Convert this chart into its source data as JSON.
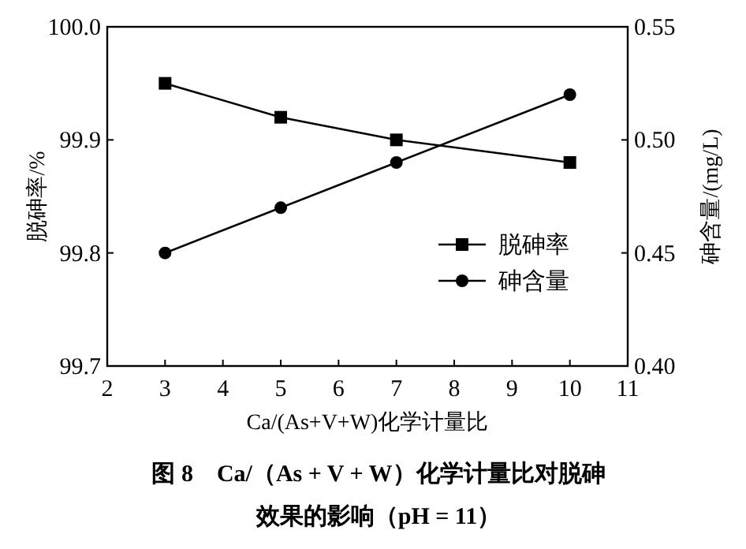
{
  "chart_data": {
    "type": "line",
    "title": "图 8　Ca/（As + V + W）化学计量比对脱砷效果的影响（pH = 11）",
    "xlabel": "Ca/(As+V+W)化学计量比",
    "ylabel": "脱砷率/%",
    "y2label": "砷含量/(mg/L)",
    "x": [
      3,
      5,
      7,
      10
    ],
    "series": [
      {
        "name": "脱砷率",
        "color": "#000000",
        "marker": "square",
        "values": [
          99.95,
          99.92,
          99.9,
          99.88
        ]
      },
      {
        "name": "砷含量",
        "color": "#000000",
        "marker": "circle",
        "axis": "y2",
        "values": [
          0.45,
          0.47,
          0.49,
          0.52
        ]
      }
    ],
    "xlim": [
      2,
      11
    ],
    "xticks": [
      2,
      3,
      4,
      5,
      6,
      7,
      8,
      9,
      10,
      11
    ],
    "ylim": [
      99.7,
      100.0
    ],
    "yticks": [
      {
        "value": 99.7,
        "label": "99.7"
      },
      {
        "value": 99.8,
        "label": "99.8"
      },
      {
        "value": 99.9,
        "label": "99.9"
      },
      {
        "value": 100.0,
        "label": "100.0"
      }
    ],
    "y2lim": [
      0.4,
      0.55
    ],
    "y2ticks": [
      {
        "value": 0.4,
        "label": "0.40"
      },
      {
        "value": 0.45,
        "label": "0.45"
      },
      {
        "value": 0.5,
        "label": "0.50"
      },
      {
        "value": 0.55,
        "label": "0.55"
      }
    ],
    "legend": "right",
    "grid": false,
    "line_style": "solid"
  }
}
